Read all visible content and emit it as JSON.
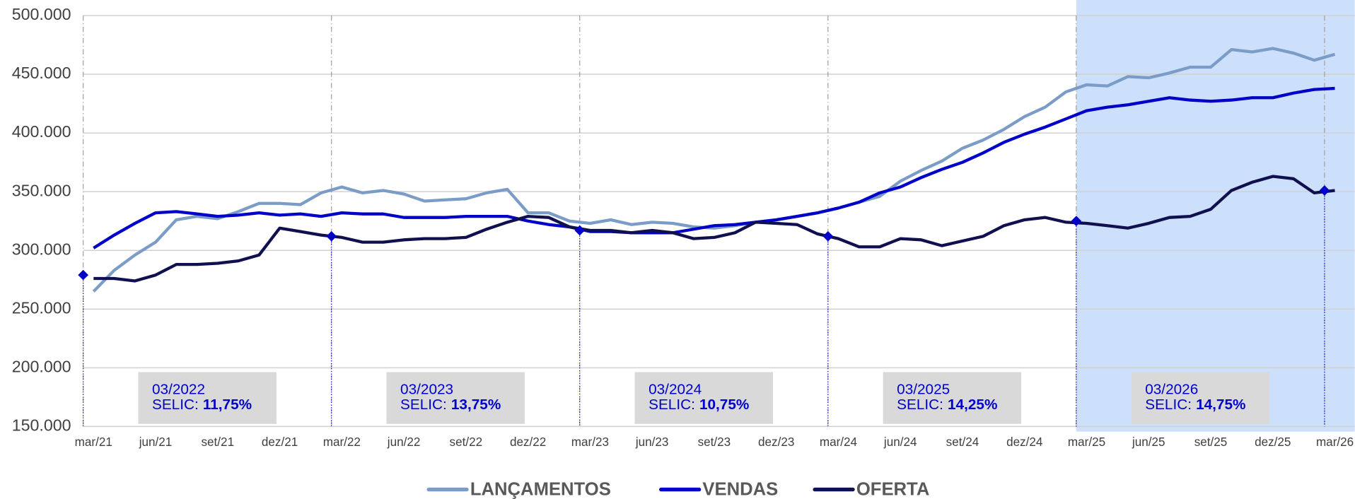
{
  "chart_data": {
    "type": "line",
    "categories": [
      "mar/21",
      null,
      null,
      "jun/21",
      null,
      null,
      "set/21",
      null,
      null,
      "dez/21",
      null,
      null,
      "mar/22",
      null,
      null,
      "jun/22",
      null,
      null,
      "set/22",
      null,
      null,
      "dez/22",
      null,
      null,
      "mar/23",
      null,
      null,
      "jun/23",
      null,
      null,
      "set/23",
      null,
      null,
      "dez/23",
      null,
      null,
      "mar/24",
      null,
      null,
      "jun/24",
      null,
      null,
      "set/24",
      null,
      null,
      "dez/24",
      null,
      null,
      "mar/25",
      null,
      null,
      "jun/25",
      null,
      null,
      "set/25",
      null,
      null,
      "dez/25",
      null,
      null,
      "mar/26"
    ],
    "series": [
      {
        "name": "LANÇAMENTOS",
        "color": "#7a9cc6",
        "values": [
          265000,
          283000,
          296000,
          307000,
          326000,
          329000,
          327000,
          333000,
          340000,
          340000,
          339000,
          349000,
          354000,
          349000,
          351000,
          348000,
          342000,
          343000,
          344000,
          349000,
          352000,
          332000,
          332000,
          325000,
          323000,
          326000,
          322000,
          324000,
          323000,
          320000,
          319000,
          321000,
          324000,
          326000,
          329000,
          332000,
          336000,
          341000,
          346000,
          359000,
          368000,
          376000,
          387000,
          394000,
          403000,
          414000,
          422000,
          435000,
          441000,
          440000,
          448000,
          447000,
          451000,
          456000,
          456000,
          471000,
          469000,
          472000,
          468000,
          462000,
          467000
        ]
      },
      {
        "name": "VENDAS",
        "color": "#0000c8",
        "values": [
          302000,
          313000,
          323000,
          332000,
          333000,
          331000,
          329000,
          330000,
          332000,
          330000,
          331000,
          329000,
          332000,
          331000,
          331000,
          328000,
          328000,
          328000,
          329000,
          329000,
          329000,
          325000,
          322000,
          320000,
          316000,
          316000,
          315000,
          315000,
          315000,
          318000,
          321000,
          322000,
          324000,
          326000,
          329000,
          332000,
          336000,
          341000,
          349000,
          354000,
          362000,
          369000,
          375000,
          383000,
          392000,
          399000,
          405000,
          412000,
          419000,
          422000,
          424000,
          427000,
          430000,
          428000,
          427000,
          428000,
          430000,
          430000,
          434000,
          437000,
          438000
        ]
      },
      {
        "name": "OFERTA",
        "color": "#10104f",
        "values": [
          276000,
          276000,
          274000,
          279000,
          288000,
          288000,
          289000,
          291000,
          296000,
          319000,
          316000,
          313000,
          311000,
          307000,
          307000,
          309000,
          310000,
          310000,
          311000,
          318000,
          324000,
          329000,
          328000,
          320000,
          317000,
          317000,
          315000,
          317000,
          315000,
          310000,
          311000,
          315000,
          324000,
          323000,
          322000,
          314000,
          310000,
          303000,
          303000,
          310000,
          309000,
          304000,
          308000,
          312000,
          321000,
          326000,
          328000,
          324000,
          323000,
          321000,
          319000,
          323000,
          328000,
          329000,
          335000,
          351000,
          358000,
          363000,
          361000,
          349000,
          351000
        ]
      }
    ],
    "markers": {
      "color": "#0000c8",
      "x": [
        "mar/21",
        "mar/22",
        "mar/23",
        "mar/24",
        "mar/25",
        "mar/26"
      ],
      "values": [
        279000,
        312000,
        317000,
        312000,
        325000,
        351000
      ]
    },
    "annotations": [
      {
        "date": "03/2022",
        "label": "SELIC:",
        "rate": "11,75%"
      },
      {
        "date": "03/2023",
        "label": "SELIC:",
        "rate": "13,75%"
      },
      {
        "date": "03/2024",
        "label": "SELIC:",
        "rate": "10,75%"
      },
      {
        "date": "03/2025",
        "label": "SELIC:",
        "rate": "14,25%"
      },
      {
        "date": "03/2026",
        "label": "SELIC:",
        "rate": "14,75%"
      }
    ],
    "shaded_from": "mar/25",
    "shade_color": "#cce0fb",
    "ylim": [
      150000,
      500000
    ],
    "yticks": [
      {
        "value": 150000,
        "label": "150.000"
      },
      {
        "value": 200000,
        "label": "200.000"
      },
      {
        "value": 250000,
        "label": "250.000"
      },
      {
        "value": 300000,
        "label": "300.000"
      },
      {
        "value": 350000,
        "label": "350.000"
      },
      {
        "value": 400000,
        "label": "400.000"
      },
      {
        "value": 450000,
        "label": "450.000"
      },
      {
        "value": 500000,
        "label": "500.000"
      }
    ],
    "grid": true,
    "legend": "bottom"
  }
}
